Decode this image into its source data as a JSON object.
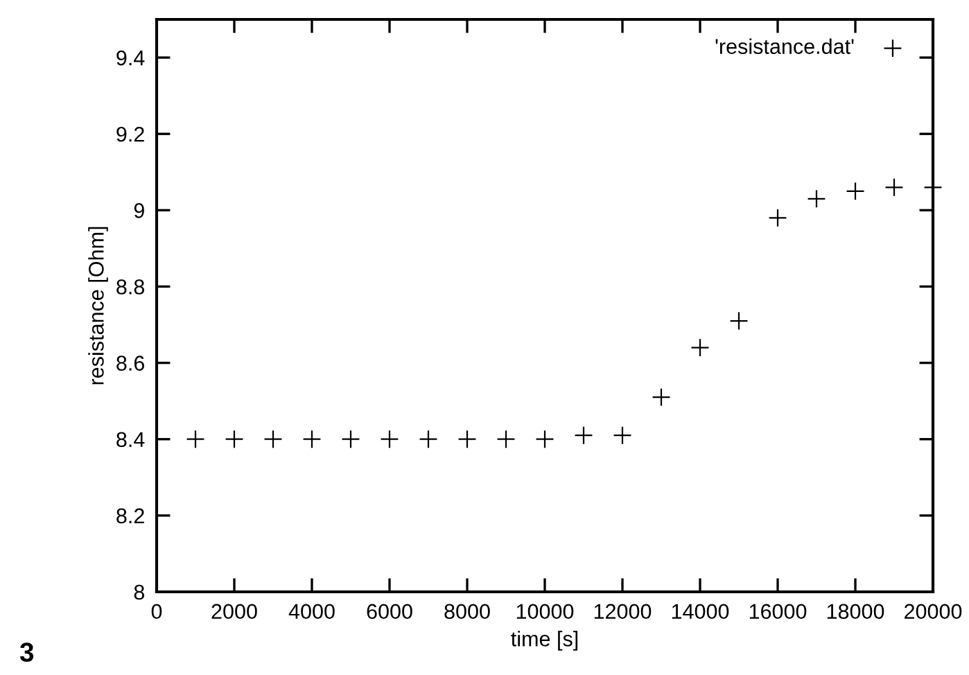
{
  "chart_data": {
    "type": "scatter",
    "xlabel": "time [s]",
    "ylabel": "resistance [Ohm]",
    "x": [
      1000,
      2000,
      3000,
      4000,
      5000,
      6000,
      7000,
      8000,
      9000,
      10000,
      11000,
      12000,
      13000,
      14000,
      15000,
      16000,
      17000,
      18000,
      19000,
      20000
    ],
    "series": [
      {
        "name": "'resistance.dat'",
        "color": "#000000",
        "values": [
          8.4,
          8.4,
          8.4,
          8.4,
          8.4,
          8.4,
          8.4,
          8.4,
          8.4,
          8.4,
          8.41,
          8.41,
          8.51,
          8.64,
          8.71,
          8.98,
          9.03,
          9.05,
          9.06,
          9.06
        ]
      }
    ],
    "marker": "cross",
    "legend": "top right",
    "grid": false,
    "xlim": [
      0,
      20000
    ],
    "xticks": [
      0,
      2000,
      4000,
      6000,
      8000,
      10000,
      12000,
      14000,
      16000,
      18000,
      20000
    ],
    "ylim": [
      8,
      9.5
    ],
    "yticks": [
      8,
      {
        "value": 8.2,
        "label": "8.2"
      },
      {
        "value": 8.4,
        "label": "8.4"
      },
      {
        "value": 8.6,
        "label": "8.6"
      },
      {
        "value": 8.8,
        "label": "8.8"
      },
      9,
      {
        "value": 9.2,
        "label": "9.2"
      },
      {
        "value": 9.4,
        "label": "9.4"
      }
    ],
    "annotations": [
      "3"
    ]
  }
}
